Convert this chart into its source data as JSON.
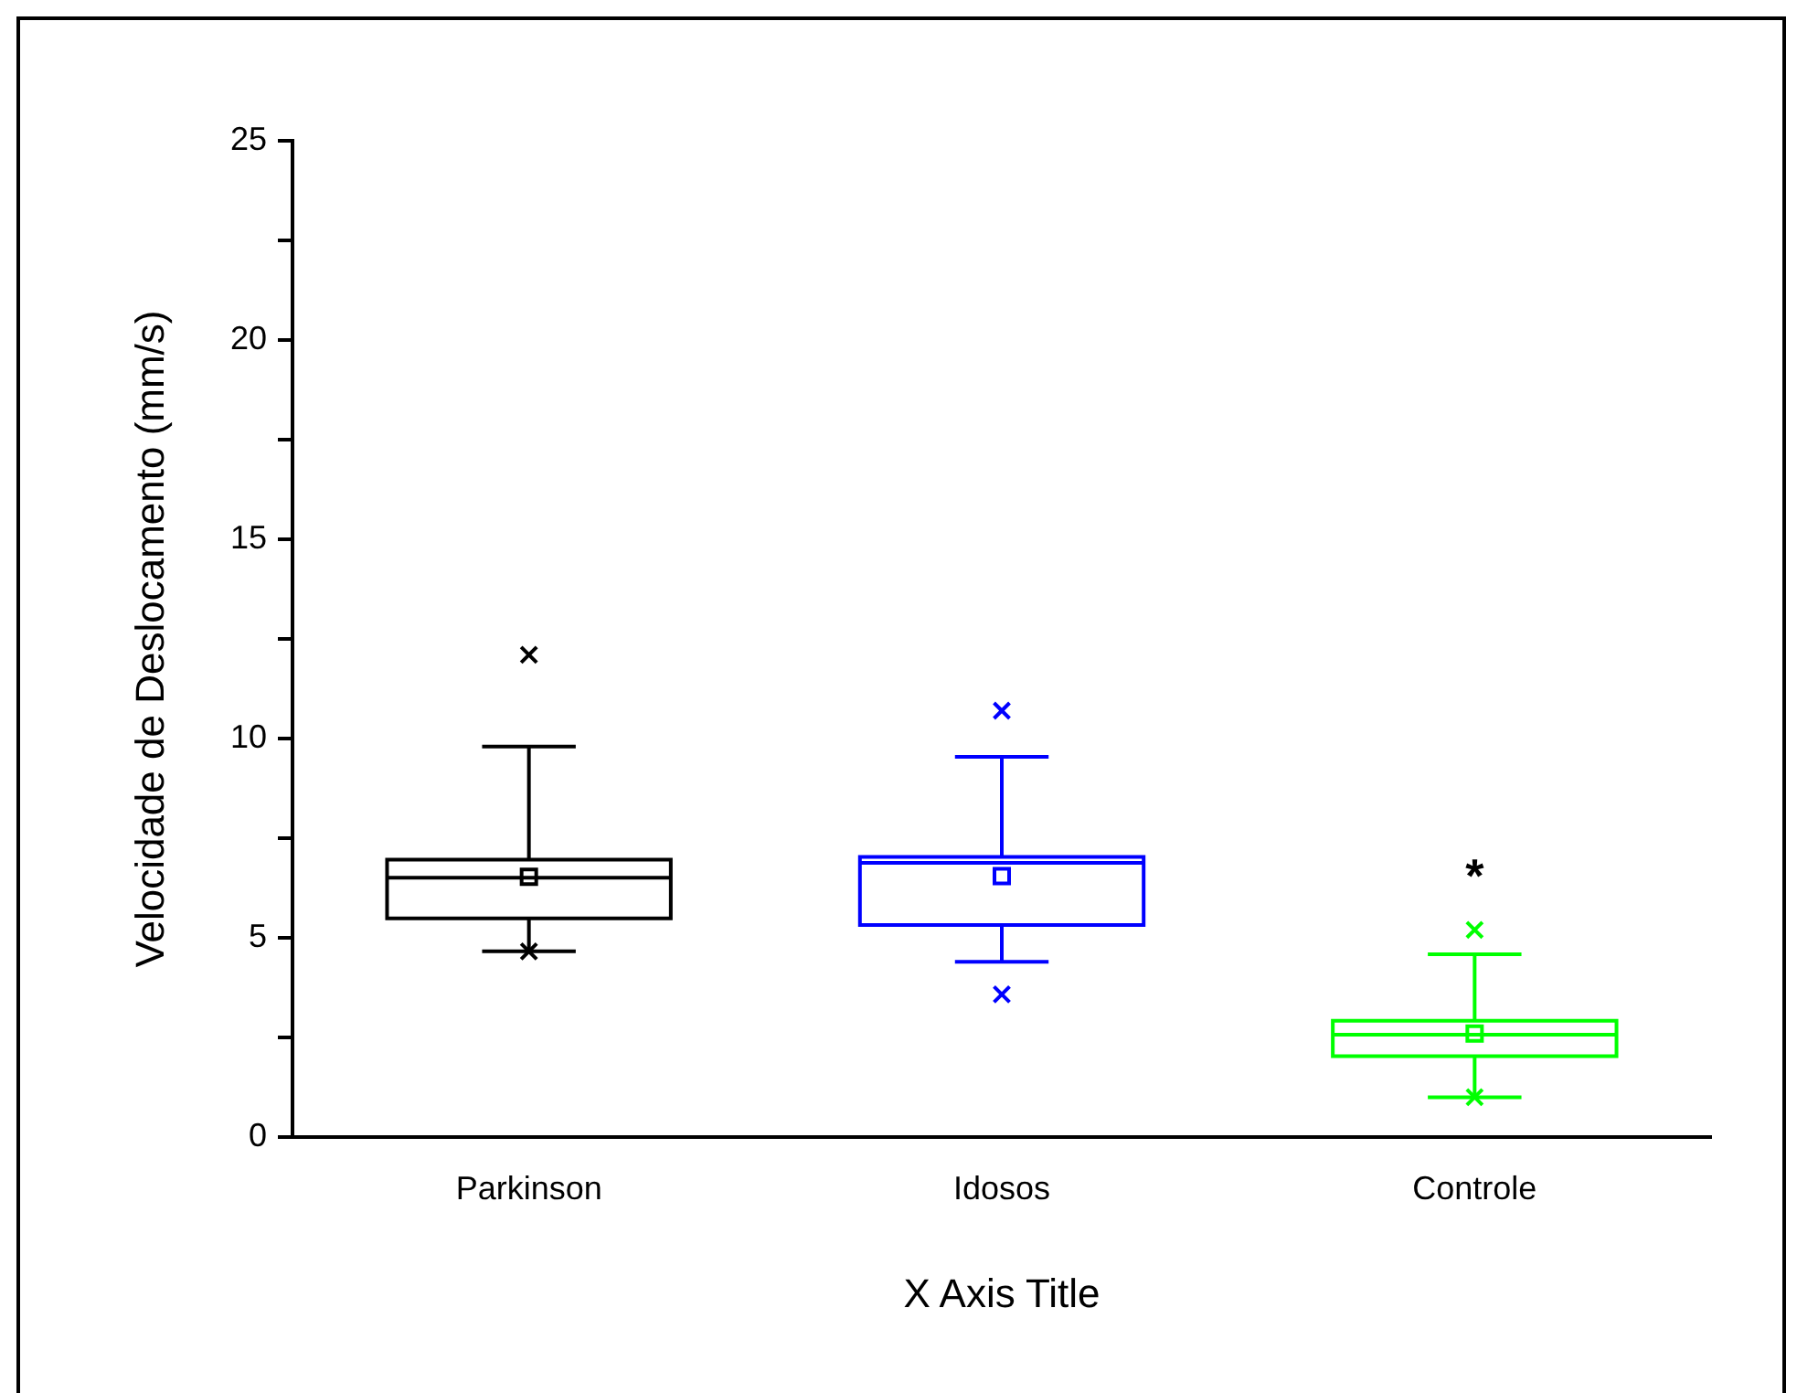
{
  "chart_data": {
    "type": "box",
    "categories": [
      "Parkinson",
      "Idosos",
      "Controle"
    ],
    "boxes": [
      {
        "low": 4.66,
        "q1": 5.49,
        "median": 6.51,
        "q3": 6.96,
        "high": 9.8,
        "mean": 6.53,
        "outliers": [
          12.1,
          4.66
        ]
      },
      {
        "low": 4.4,
        "q1": 5.32,
        "median": 6.88,
        "q3": 7.03,
        "high": 9.54,
        "mean": 6.55,
        "outliers": [
          10.7,
          3.58
        ]
      },
      {
        "low": 1.0,
        "q1": 2.03,
        "median": 2.57,
        "q3": 2.92,
        "high": 4.59,
        "mean": 2.6,
        "outliers": [
          5.2,
          1.0
        ]
      }
    ],
    "colors": [
      "#000000",
      "#0000ff",
      "#00ff00"
    ],
    "xlabel": "X Axis Title",
    "ylabel": "Velocidade de Deslocamento (mm/s)",
    "ylim": [
      0,
      25
    ],
    "yticks": [
      0,
      {
        "value": 2.5,
        "label": null
      },
      5,
      {
        "value": 7.5,
        "label": null
      },
      10,
      {
        "value": 12.5,
        "label": null
      },
      15,
      {
        "value": 17.5,
        "label": null
      },
      20,
      {
        "value": 22.5,
        "label": null
      },
      25
    ],
    "annotations": [
      "*"
    ],
    "grid": false,
    "legend": false,
    "marker": "cross"
  }
}
